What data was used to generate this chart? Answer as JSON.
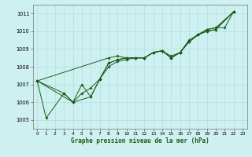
{
  "title": "Graphe pression niveau de la mer (hPa)",
  "bg_color": "#cff0f0",
  "line_color": "#1a5c1a",
  "marker_color": "#1a5c1a",
  "grid_color": "#b0dede",
  "xlim": [
    -0.5,
    23.5
  ],
  "ylim": [
    1004.5,
    1011.5
  ],
  "yticks": [
    1005,
    1006,
    1007,
    1008,
    1009,
    1010,
    1011
  ],
  "xticks": [
    0,
    1,
    2,
    3,
    4,
    5,
    6,
    7,
    8,
    9,
    10,
    11,
    12,
    13,
    14,
    15,
    16,
    17,
    18,
    19,
    20,
    21,
    22,
    23
  ],
  "series": [
    {
      "x": [
        0,
        1,
        3,
        4,
        5,
        6,
        7,
        8,
        9,
        10,
        11,
        12,
        13,
        14,
        15,
        16,
        17,
        18,
        19,
        20,
        21,
        22
      ],
      "y": [
        1007.2,
        1005.1,
        1006.5,
        1006.0,
        1007.0,
        1006.3,
        1007.3,
        1008.2,
        1008.4,
        1008.5,
        1008.5,
        1008.5,
        1008.8,
        1008.9,
        1008.5,
        1008.8,
        1009.4,
        1009.8,
        1010.1,
        1010.2,
        1010.2,
        1011.1
      ]
    },
    {
      "x": [
        0,
        3,
        4,
        5,
        6,
        7,
        8,
        9,
        10,
        11,
        12,
        13,
        14,
        15,
        16,
        17,
        18,
        19,
        20,
        22
      ],
      "y": [
        1007.2,
        1006.5,
        1006.0,
        1006.5,
        1006.8,
        1007.3,
        1008.2,
        1008.4,
        1008.5,
        1008.5,
        1008.5,
        1008.8,
        1008.9,
        1008.6,
        1008.8,
        1009.5,
        1009.8,
        1010.0,
        1010.1,
        1011.1
      ]
    },
    {
      "x": [
        0,
        4,
        6,
        7,
        8,
        9,
        10,
        11,
        12,
        13,
        14,
        15,
        16,
        17,
        18,
        19,
        20,
        22
      ],
      "y": [
        1007.2,
        1006.0,
        1006.3,
        1007.3,
        1008.0,
        1008.3,
        1008.4,
        1008.5,
        1008.5,
        1008.8,
        1008.9,
        1008.5,
        1008.8,
        1009.4,
        1009.8,
        1010.0,
        1010.1,
        1011.1
      ]
    },
    {
      "x": [
        0,
        8,
        9,
        10,
        11,
        12,
        13,
        14,
        15,
        16,
        17,
        18,
        19,
        20,
        22
      ],
      "y": [
        1007.2,
        1008.5,
        1008.6,
        1008.5,
        1008.5,
        1008.5,
        1008.8,
        1008.9,
        1008.5,
        1008.8,
        1009.4,
        1009.8,
        1010.1,
        1010.2,
        1011.1
      ]
    }
  ]
}
